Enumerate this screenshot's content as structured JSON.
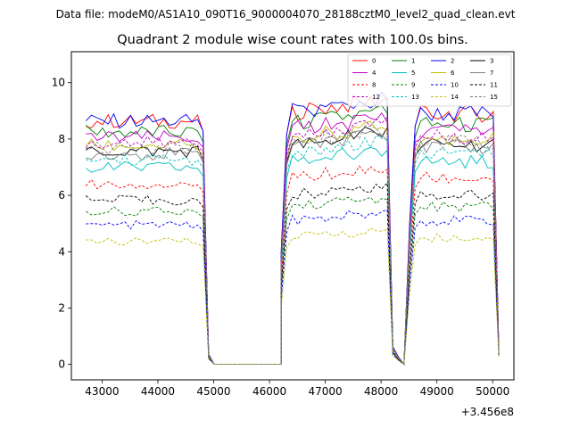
{
  "figure": {
    "suptitle": "Data file: modeM0/AS1A10_090T16_9000004070_28188cztM0_level2_quad_clean.evt"
  },
  "chart_data": {
    "type": "line",
    "title": "Quadrant 2 module wise count rates with 100.0s bins.",
    "xlabel": "",
    "ylabel": "",
    "x_offset_label": "+3.456e8",
    "xlim": [
      42450,
      50380
    ],
    "ylim": [
      -0.55,
      11.1
    ],
    "x_ticks": [
      43000,
      44000,
      45000,
      46000,
      47000,
      48000,
      49000,
      50000
    ],
    "x_tick_labels": [
      "43000",
      "44000",
      "45000",
      "46000",
      "47000",
      "48000",
      "49000",
      "50000"
    ],
    "y_ticks": [
      0,
      2,
      4,
      6,
      8,
      10
    ],
    "y_tick_labels": [
      "0",
      "2",
      "4",
      "6",
      "8",
      "10"
    ],
    "grid": false,
    "legend_position": "top-right",
    "legend_columns": 4,
    "segments": [
      {
        "x_start": 42710,
        "count": 23
      },
      {
        "x_start": 45010,
        "count": 13
      },
      {
        "x_start": 46210,
        "count": 20
      },
      {
        "x_start": 48210,
        "count": 3
      },
      {
        "x_start": 48510,
        "count": 17
      }
    ],
    "bin_width": 100,
    "series": [
      {
        "name": "0",
        "color": "#ff0000",
        "dashed": false,
        "level": 8.9
      },
      {
        "name": "1",
        "color": "#008000",
        "dashed": false,
        "level": 8.5
      },
      {
        "name": "2",
        "color": "#0000ff",
        "dashed": false,
        "level": 8.9
      },
      {
        "name": "3",
        "color": "#000000",
        "dashed": false,
        "level": 7.8
      },
      {
        "name": "4",
        "color": "#bf00bf",
        "dashed": false,
        "level": 8.3
      },
      {
        "name": "5",
        "color": "#00bfbf",
        "dashed": false,
        "level": 7.2
      },
      {
        "name": "6",
        "color": "#bfbf00",
        "dashed": false,
        "level": 8.0
      },
      {
        "name": "7",
        "color": "#808080",
        "dashed": false,
        "level": 7.7
      },
      {
        "name": "8",
        "color": "#ff0000",
        "dashed": true,
        "level": 6.6
      },
      {
        "name": "9",
        "color": "#008000",
        "dashed": true,
        "level": 5.6
      },
      {
        "name": "10",
        "color": "#0000ff",
        "dashed": true,
        "level": 5.1
      },
      {
        "name": "11",
        "color": "#000000",
        "dashed": true,
        "level": 6.0
      },
      {
        "name": "12",
        "color": "#bf00bf",
        "dashed": true,
        "level": 8.1
      },
      {
        "name": "13",
        "color": "#00bfbf",
        "dashed": true,
        "level": 7.5
      },
      {
        "name": "14",
        "color": "#bfbf00",
        "dashed": true,
        "level": 4.5
      },
      {
        "name": "15",
        "color": "#808080",
        "dashed": true,
        "level": 7.9
      }
    ]
  }
}
